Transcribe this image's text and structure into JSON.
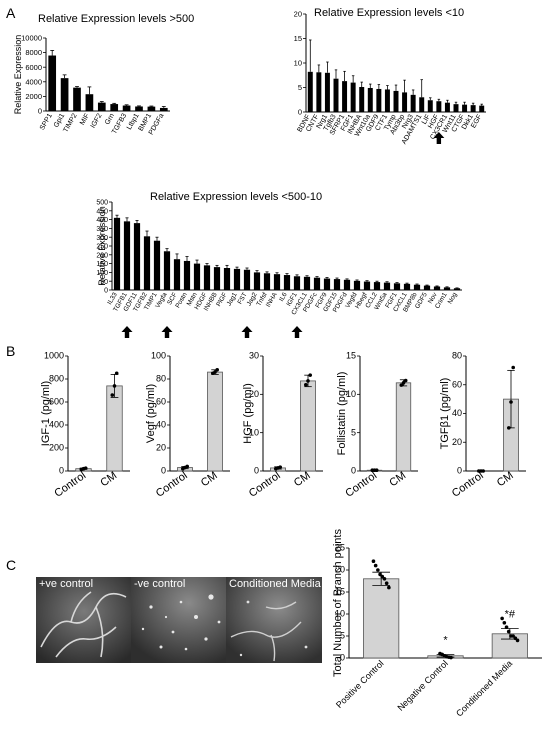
{
  "panel_labels": {
    "a": "A",
    "b": "B",
    "c": "C"
  },
  "arrow_icon": "up-arrow-icon",
  "chart_data": [
    {
      "id": "a1",
      "type": "bar",
      "title": "Relative Expression levels >500",
      "ylabel": "Relative Expression",
      "ylim": [
        0,
        10000
      ],
      "yticks": [
        0,
        2000,
        4000,
        6000,
        8000,
        10000
      ],
      "categories": [
        "SPP1",
        "Gpi1",
        "TIMP2",
        "MIF",
        "IGF2",
        "Grn",
        "TGFB3",
        "Ltbp1",
        "BMP1",
        "PDGFa"
      ],
      "values": [
        7600,
        4500,
        3200,
        2300,
        1150,
        950,
        750,
        620,
        600,
        420
      ],
      "errors": [
        700,
        450,
        150,
        1000,
        150,
        100,
        100,
        80,
        80,
        200
      ],
      "arrows": []
    },
    {
      "id": "a2",
      "type": "bar",
      "title": "Relative Expression levels <10",
      "ylabel": "",
      "ylim": [
        0,
        20
      ],
      "yticks": [
        0,
        5,
        10,
        15,
        20
      ],
      "categories": [
        "BDNF",
        "CNTF",
        "Nrg1",
        "Tgfb3",
        "SFRP1",
        "FGF1",
        "INHBA",
        "Wnt10a",
        "GDF9",
        "CTF1",
        "Tymp",
        "Abi3bp",
        "Nrg3",
        "ADAMTS1",
        "LIF",
        "HGF",
        "CX3CR1",
        "Wnt11",
        "CTGF",
        "Dkk1",
        "EGF"
      ],
      "values": [
        8.2,
        8.1,
        8.0,
        6.8,
        6.3,
        6.0,
        5.1,
        4.9,
        4.7,
        4.6,
        4.3,
        4.0,
        3.5,
        3.0,
        2.4,
        2.2,
        1.9,
        1.6,
        1.5,
        1.4,
        1.3
      ],
      "errors": [
        6.5,
        1.5,
        2.2,
        1.8,
        2.0,
        1.4,
        1.0,
        0.8,
        0.9,
        0.8,
        1.2,
        2.5,
        1.0,
        3.6,
        0.5,
        0.4,
        0.5,
        0.4,
        0.5,
        0.4,
        0.3
      ],
      "arrows": [
        "HGF"
      ]
    },
    {
      "id": "a3",
      "type": "bar",
      "title": "Relative Expression levels <500-10",
      "ylabel": "Relative Expression",
      "ylim": [
        0,
        500
      ],
      "yticks": [
        0,
        50,
        100,
        150,
        200,
        250,
        300,
        350,
        400,
        450,
        500
      ],
      "categories": [
        "IL33",
        "TGFB1",
        "GDF11",
        "TGFB2",
        "TIMP1",
        "Vegfa",
        "SCF",
        "Postn",
        "Mstn",
        "HDGF",
        "INHBB",
        "PlGF",
        "Jag1",
        "FST",
        "Jag2",
        "Tnfsf",
        "INHA",
        "IL6",
        "IGF1",
        "CX3CL1",
        "PDGFc",
        "FGF9",
        "GDF15",
        "PDGFd",
        "Vegfd",
        "Hbegf",
        "CCL2",
        "Wnt5a",
        "FGF1",
        "CXCL1",
        "BMP8b",
        "GDF5",
        "Nov",
        "Crim1",
        "Nog"
      ],
      "values": [
        410,
        390,
        380,
        305,
        280,
        220,
        175,
        165,
        150,
        140,
        130,
        125,
        120,
        115,
        100,
        95,
        90,
        85,
        78,
        75,
        70,
        65,
        62,
        58,
        52,
        48,
        45,
        42,
        38,
        35,
        30,
        25,
        20,
        15,
        10
      ],
      "errors": [
        15,
        20,
        15,
        30,
        20,
        15,
        30,
        25,
        20,
        10,
        10,
        15,
        10,
        10,
        10,
        8,
        8,
        8,
        8,
        6,
        6,
        6,
        6,
        5,
        5,
        5,
        5,
        5,
        4,
        4,
        4,
        3,
        3,
        3,
        2
      ],
      "arrows": [
        "TGFB1",
        "Vegfa",
        "FST",
        "IGF1"
      ]
    },
    {
      "id": "b1",
      "type": "bar",
      "ylabel": "IGF-1 (pg/ml)",
      "ylim": [
        0,
        1000
      ],
      "yticks": [
        0,
        200,
        400,
        600,
        800,
        1000
      ],
      "categories": [
        "Control",
        "CM"
      ],
      "values": [
        20,
        740
      ],
      "errors": [
        5,
        100
      ],
      "points": [
        [
          14,
          20,
          25
        ],
        [
          660,
          740,
          850
        ]
      ]
    },
    {
      "id": "b2",
      "type": "bar",
      "ylabel": "Vegf (pg/ml)",
      "ylim": [
        0,
        100
      ],
      "yticks": [
        0,
        20,
        40,
        60,
        80,
        100
      ],
      "categories": [
        "Control",
        "CM"
      ],
      "values": [
        3,
        86
      ],
      "errors": [
        1,
        2
      ],
      "points": [
        [
          2,
          3,
          4
        ],
        [
          85,
          86,
          88
        ]
      ]
    },
    {
      "id": "b3",
      "type": "bar",
      "ylabel": "HGF (pg/ml)",
      "ylim": [
        0,
        30
      ],
      "yticks": [
        0,
        10,
        20,
        30
      ],
      "categories": [
        "Control",
        "CM"
      ],
      "values": [
        0.8,
        23.5
      ],
      "errors": [
        0.3,
        1.5
      ],
      "points": [
        [
          0.6,
          0.8,
          1.0
        ],
        [
          22.5,
          23.5,
          25.0
        ]
      ]
    },
    {
      "id": "b4",
      "type": "bar",
      "ylabel": "Follistatin (pg/ml)",
      "ylim": [
        0,
        15
      ],
      "yticks": [
        0,
        5,
        10,
        15
      ],
      "categories": [
        "Control",
        "CM"
      ],
      "values": [
        0.1,
        11.5
      ],
      "errors": [
        0.05,
        0.4
      ],
      "points": [
        [
          0.1,
          0.1,
          0.1
        ],
        [
          11.2,
          11.5,
          11.8
        ]
      ]
    },
    {
      "id": "b5",
      "type": "bar",
      "ylabel": "TGFβ1 (pg/ml)",
      "ylim": [
        0,
        80
      ],
      "yticks": [
        0,
        20,
        40,
        60,
        80
      ],
      "categories": [
        "Control",
        "CM"
      ],
      "values": [
        0,
        50
      ],
      "errors": [
        0,
        20
      ],
      "points": [
        [
          0,
          0,
          0
        ],
        [
          30,
          48,
          72
        ]
      ]
    },
    {
      "id": "c1",
      "type": "bar",
      "ylabel": "Total Number of Branch points",
      "ylim": [
        0,
        25
      ],
      "yticks": [
        0,
        5,
        10,
        15,
        20,
        25
      ],
      "categories": [
        "Positive Control",
        "Negative Control",
        "Conditioned Media"
      ],
      "values": [
        18,
        0.5,
        5.5
      ],
      "errors": [
        1.5,
        0.3,
        1.2
      ],
      "points": [
        [
          22,
          21,
          20,
          19,
          18.5,
          18,
          17,
          16
        ],
        [
          1,
          0.8,
          0.5,
          0.3,
          0.2,
          0.1
        ],
        [
          9,
          8,
          7,
          6,
          5,
          5,
          4.5,
          4
        ]
      ],
      "annotations": [
        "",
        "*",
        "*#"
      ]
    }
  ],
  "micrographs": [
    {
      "label": "+ve control"
    },
    {
      "label": "-ve control"
    },
    {
      "label": "Conditioned Media"
    }
  ]
}
